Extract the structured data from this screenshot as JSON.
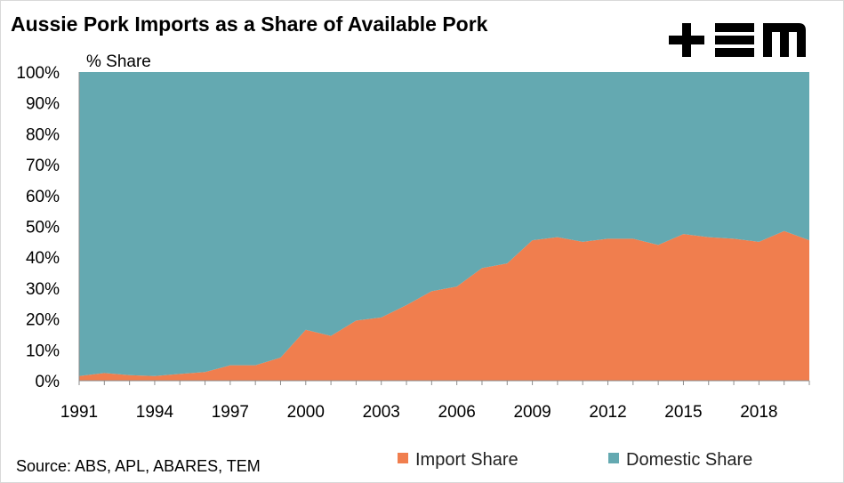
{
  "header": {
    "title": "Aussie Pork Imports as a Share of Available Pork"
  },
  "logo": {
    "icon": "tem-logo",
    "text": "TEM"
  },
  "source_note": "Source: ABS, APL, ABARES, TEM",
  "chart_data": {
    "type": "area",
    "stacked": true,
    "title": "Aussie Pork Imports as a Share of Available Pork",
    "xlabel": "",
    "ylabel": "% Share",
    "x": [
      1991,
      1992,
      1993,
      1994,
      1995,
      1996,
      1997,
      1998,
      1999,
      2000,
      2001,
      2002,
      2003,
      2004,
      2005,
      2006,
      2007,
      2008,
      2009,
      2010,
      2011,
      2012,
      2013,
      2014,
      2015,
      2016,
      2017,
      2018,
      2019,
      2020
    ],
    "x_tick_labels": [
      "1991",
      "1994",
      "1997",
      "2000",
      "2003",
      "2006",
      "2009",
      "2012",
      "2015",
      "2018"
    ],
    "y_tick_labels": [
      "0%",
      "10%",
      "20%",
      "30%",
      "40%",
      "50%",
      "60%",
      "70%",
      "80%",
      "90%",
      "100%"
    ],
    "ylim": [
      0,
      100
    ],
    "grid": false,
    "legend_position": "bottom",
    "series": [
      {
        "name": "Import Share",
        "color": "#f07e4e",
        "values": [
          1.5,
          2.5,
          1.8,
          1.5,
          2.2,
          2.8,
          5.0,
          5.0,
          7.5,
          16.5,
          14.5,
          19.5,
          20.5,
          24.5,
          29.0,
          30.5,
          36.5,
          38.0,
          45.5,
          46.5,
          45.0,
          46.0,
          46.0,
          44.0,
          47.5,
          46.5,
          46.0,
          45.0,
          48.5,
          45.5
        ]
      },
      {
        "name": "Domestic Share",
        "color": "#64a9b1",
        "values": [
          98.5,
          97.5,
          98.2,
          98.5,
          97.8,
          97.2,
          95.0,
          95.0,
          92.5,
          83.5,
          85.5,
          80.5,
          79.5,
          75.5,
          71.0,
          69.5,
          63.5,
          62.0,
          54.5,
          53.5,
          55.0,
          54.0,
          54.0,
          56.0,
          52.5,
          53.5,
          54.0,
          55.0,
          51.5,
          54.5
        ]
      }
    ]
  }
}
